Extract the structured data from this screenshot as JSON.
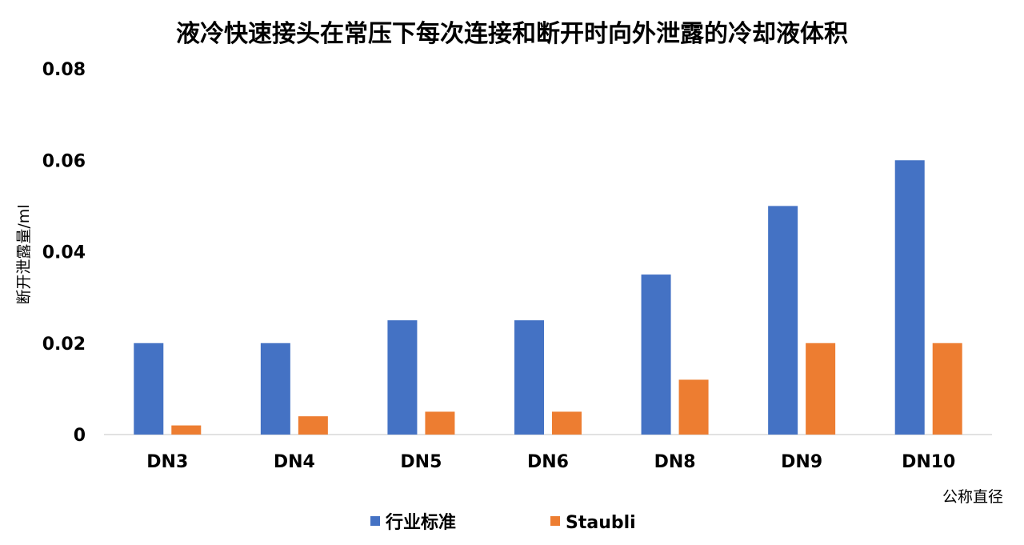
{
  "chart_data": {
    "type": "bar",
    "title": "液冷快速接头在常压下每次连接和断开时向外泄露的冷却液体积",
    "xlabel": "公称直径",
    "ylabel": "断开泄露量/ml",
    "ylim": [
      0,
      0.08
    ],
    "yticks": [
      0,
      0.02,
      0.04,
      0.06,
      0.08
    ],
    "ytick_labels": [
      "0",
      "0.02",
      "0.04",
      "0.06",
      "0.08"
    ],
    "categories": [
      "DN3",
      "DN4",
      "DN5",
      "DN6",
      "DN8",
      "DN9",
      "DN10"
    ],
    "series": [
      {
        "name": "行业标准",
        "color": "#4472C4",
        "values": [
          0.02,
          0.02,
          0.025,
          0.025,
          0.035,
          0.05,
          0.06
        ]
      },
      {
        "name": "Staubli",
        "color": "#ED7D31",
        "values": [
          0.002,
          0.004,
          0.005,
          0.005,
          0.012,
          0.02,
          0.02
        ]
      }
    ],
    "grid": false,
    "legend_position": "bottom"
  }
}
